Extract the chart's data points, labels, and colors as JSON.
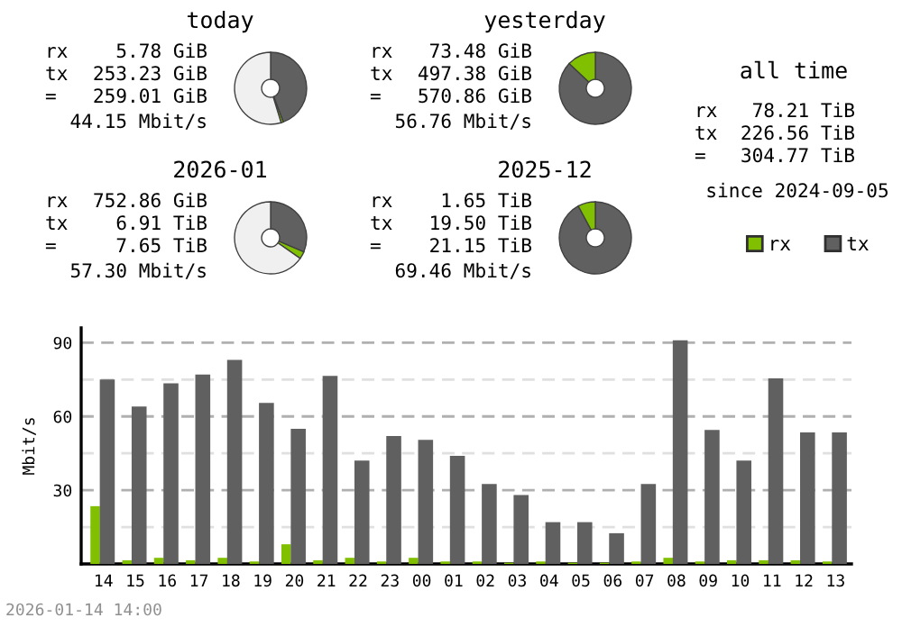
{
  "chart_data": [
    {
      "type": "donut",
      "title": "today",
      "categories": [
        null,
        null,
        null
      ],
      "values": [
        44.3,
        1.0,
        54.7
      ],
      "colors": [
        "#606060",
        "#80c000",
        "#f0f0f0"
      ],
      "annotations": [
        "rx",
        "5.78 GiB",
        "tx",
        "253.23 GiB",
        "=",
        "259.01 GiB",
        "44.15 Mbit/s"
      ]
    },
    {
      "type": "donut",
      "title": "yesterday",
      "categories": [
        null,
        null
      ],
      "values": [
        87.1,
        12.9
      ],
      "colors": [
        "#606060",
        "#80c000"
      ],
      "annotations": [
        "rx",
        "73.48 GiB",
        "tx",
        "497.38 GiB",
        "=",
        "570.86 GiB",
        "56.76 Mbit/s"
      ]
    },
    {
      "type": "donut",
      "title": "2026-01",
      "categories": [
        null,
        null,
        null
      ],
      "values": [
        31.4,
        3.3,
        65.3
      ],
      "colors": [
        "#606060",
        "#80c000",
        "#f0f0f0"
      ],
      "annotations": [
        "rx",
        "752.86 GiB",
        "tx",
        "6.91 TiB",
        "=",
        "7.65 TiB",
        "57.30 Mbit/s"
      ]
    },
    {
      "type": "donut",
      "title": "2025-12",
      "categories": [
        null,
        null
      ],
      "values": [
        92.2,
        7.8
      ],
      "colors": [
        "#606060",
        "#80c000"
      ],
      "annotations": [
        "rx",
        "1.65 TiB",
        "tx",
        "19.50 TiB",
        "=",
        "21.15 TiB",
        "69.46 Mbit/s"
      ]
    },
    {
      "type": "other",
      "title": "all time",
      "annotations": [
        "rx",
        "78.21 TiB",
        "tx",
        "226.56 TiB",
        "=",
        "304.77 TiB",
        "since 2024-09-05"
      ]
    },
    {
      "type": "bar",
      "ylabel": "Mbit/s",
      "categories": [
        "14",
        "15",
        "16",
        "17",
        "18",
        "19",
        "20",
        "21",
        "22",
        "23",
        "00",
        "01",
        "02",
        "03",
        "04",
        "05",
        "06",
        "07",
        "08",
        "09",
        "10",
        "11",
        "12",
        "13"
      ],
      "series": [
        {
          "name": "rx",
          "color": "#80c000",
          "values": [
            23.5,
            1.5,
            2.5,
            1.5,
            2.5,
            1,
            8,
            1.5,
            2.5,
            1,
            2.5,
            1,
            1,
            0.5,
            1,
            0.5,
            0.5,
            1,
            2.5,
            1,
            1.5,
            1.5,
            1.5,
            1
          ]
        },
        {
          "name": "tx",
          "color": "#606060",
          "values": [
            75,
            64,
            73.5,
            77,
            83,
            65.5,
            55,
            76.5,
            42,
            52,
            50.5,
            44,
            32.5,
            28,
            17,
            17,
            12.5,
            32.5,
            91,
            54.5,
            42,
            75.5,
            53.5,
            53.5
          ]
        }
      ],
      "ylim": [
        0,
        96
      ],
      "yticks": [
        {
          "value": 15,
          "label": null
        },
        30,
        {
          "value": 45,
          "label": null
        },
        60,
        {
          "value": 75,
          "label": null
        },
        90
      ],
      "grid": "y",
      "legend": "top right",
      "annotations": [
        "2026-01-14 14:00"
      ]
    }
  ]
}
